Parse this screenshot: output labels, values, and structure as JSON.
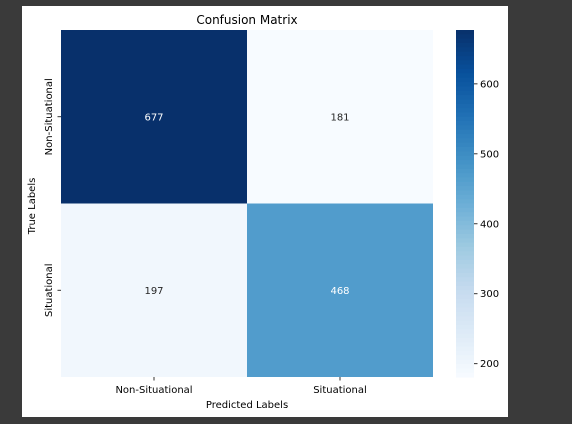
{
  "chart_data": {
    "type": "heatmap",
    "title": "Confusion Matrix",
    "xlabel": "Predicted Labels",
    "ylabel": "True Labels",
    "x_categories": [
      "Non-Situational",
      "Situational"
    ],
    "y_categories": [
      "Non-Situational",
      "Situational"
    ],
    "values": [
      [
        677,
        181
      ],
      [
        197,
        468
      ]
    ],
    "colormap": "Blues",
    "colorbar": {
      "range": [
        181,
        677
      ],
      "ticks": [
        200,
        300,
        400,
        500,
        600
      ]
    },
    "annotations": true,
    "grid": false
  }
}
